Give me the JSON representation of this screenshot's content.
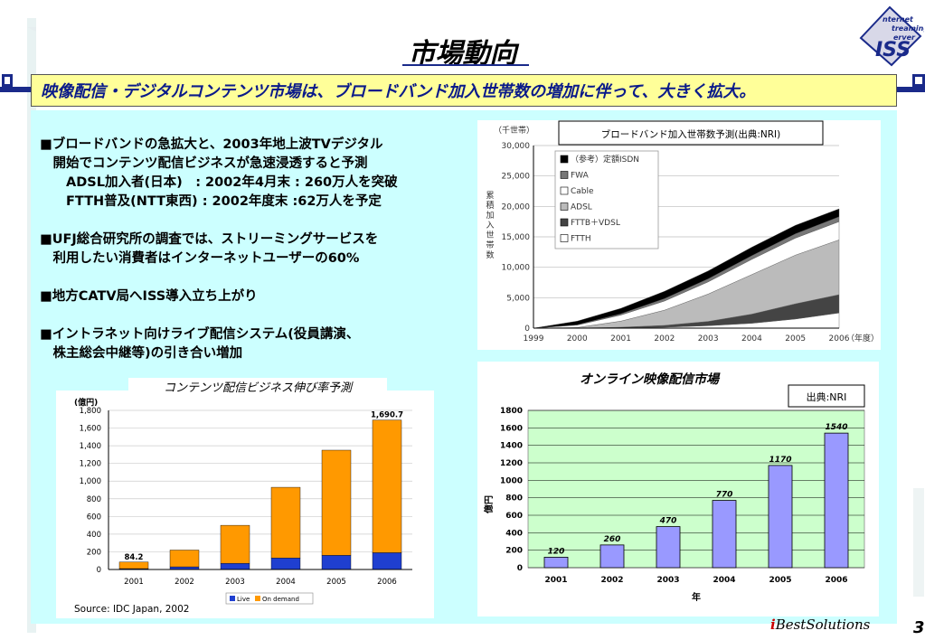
{
  "title": "市場動向",
  "subtitle": "映像配信・デジタルコンテンツ市場は、ブロードバンド加入世帯数の増加に伴って、大きく拡大。",
  "bullets": [
    "■ブロードバンドの急拡大と、2003年地上波TVデジタル",
    "　開始でコンテンツ配信ビジネスが急速浸透すると予測",
    "　　ADSL加入者(日本)　: 2002年4月末 : 260万人を突破",
    "　　FTTH普及(NTT東西) : 2002年度末 :62万人を予定",
    "",
    "■UFJ総合研究所の調査では、ストリーミングサービスを",
    "　利用したい消費者はインターネットユーザーの60%",
    "",
    "■地方CATV局へISS導入立ち上がり",
    "",
    "■イントラネット向けライブ配信システム(役員講演、",
    "　株主総会中継等)の引き合い増加"
  ],
  "logo": {
    "line1": "Internet",
    "line2": "Streaming",
    "line3": "Server",
    "mark": "ISS"
  },
  "footer": {
    "brand_i": "i",
    "brand_rest": "BestSolutions",
    "page": "3"
  },
  "chart_data": [
    {
      "type": "area",
      "title": "ブロードバンド加入世帯数予測(出典:NRI)",
      "unit_label": "（千世帯）",
      "ylabel": "累積加入世帯数",
      "x": [
        "1999",
        "2000",
        "2001",
        "2002",
        "2003",
        "2004",
        "2005",
        "2006"
      ],
      "x_suffix": "（年度）",
      "ylim": [
        0,
        30000
      ],
      "yticks": [
        "0",
        "5,000",
        "10,000",
        "15,000",
        "20,000",
        "25,000",
        "30,000"
      ],
      "legend_position": "top-left",
      "series": [
        {
          "name": "FTTH",
          "color": "#ffffff",
          "values": [
            0,
            0,
            50,
            150,
            400,
            800,
            1500,
            2500
          ]
        },
        {
          "name": "FTTB＋VDSL",
          "color": "#444444",
          "values": [
            0,
            0,
            100,
            300,
            700,
            1500,
            2500,
            3000
          ]
        },
        {
          "name": "ADSL",
          "color": "#bbbbbb",
          "values": [
            0,
            100,
            1000,
            2500,
            4500,
            6500,
            8000,
            9000
          ]
        },
        {
          "name": "Cable",
          "color": "#ffffff",
          "values": [
            0,
            400,
            1000,
            1500,
            2000,
            2500,
            2800,
            3000
          ]
        },
        {
          "name": "FWA",
          "color": "#777777",
          "values": [
            0,
            50,
            200,
            400,
            500,
            600,
            700,
            800
          ]
        },
        {
          "name": "（参考）定額ISDN",
          "color": "#000000",
          "values": [
            0,
            600,
            900,
            1200,
            1300,
            1400,
            1400,
            1300
          ]
        }
      ]
    },
    {
      "type": "bar",
      "title": "コンテンツ配信ビジネス伸び率予測",
      "unit_label": "(億円)",
      "categories": [
        "2001",
        "2002",
        "2003",
        "2004",
        "2005",
        "2006"
      ],
      "ylim": [
        0,
        1800
      ],
      "yticks": [
        "0",
        "200",
        "400",
        "600",
        "800",
        "1,000",
        "1,200",
        "1,400",
        "1,600",
        "1,800"
      ],
      "series": [
        {
          "name": "Live",
          "color": "#1f3fd0",
          "values": [
            10,
            30,
            70,
            130,
            160,
            190
          ]
        },
        {
          "name": "On demand",
          "color": "#ff9900",
          "values": [
            74,
            190,
            430,
            800,
            1190,
            1501
          ]
        }
      ],
      "data_labels": [
        "84.2",
        "",
        "",
        "",
        "",
        "1,690.7"
      ],
      "source": "Source: IDC Japan, 2002"
    },
    {
      "type": "bar",
      "title": "オンライン映像配信市場",
      "source_box": "出典:NRI",
      "categories": [
        "2001",
        "2002",
        "2003",
        "2004",
        "2005",
        "2006"
      ],
      "values": [
        120,
        260,
        470,
        770,
        1170,
        1540
      ],
      "ylim": [
        0,
        1800
      ],
      "yticks": [
        "0",
        "200",
        "400",
        "600",
        "800",
        "1000",
        "1200",
        "1400",
        "1600",
        "1800"
      ],
      "ylabel": "億円",
      "xlabel": "年",
      "color": "#9999ff",
      "plot_bg": "#ccffcc"
    }
  ]
}
